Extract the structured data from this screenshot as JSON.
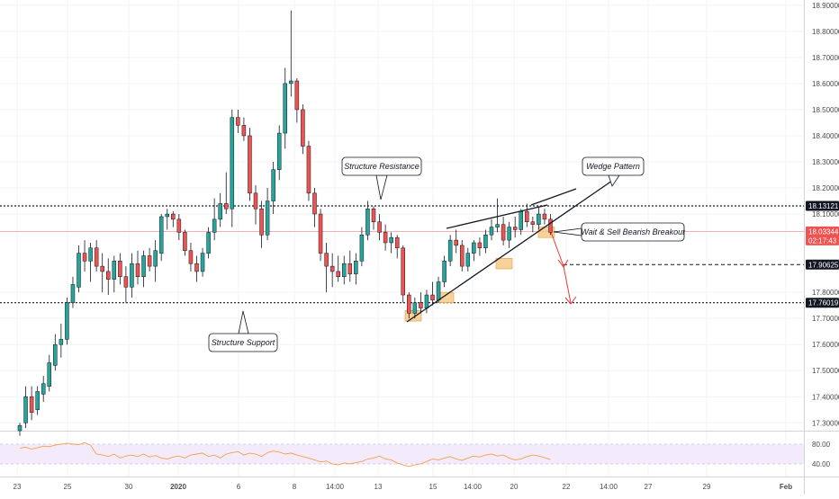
{
  "chart_data": {
    "type": "candlestick",
    "y_axis": {
      "ticks": [
        "18.90000",
        "18.80000",
        "18.70000",
        "18.60000",
        "18.50000",
        "18.40000",
        "18.30000",
        "18.20000",
        "18.10000",
        "17.80000",
        "17.70000",
        "17.60000",
        "17.50000",
        "17.40000",
        "17.30000"
      ],
      "ylim": [
        17.27,
        18.92
      ]
    },
    "x_axis": {
      "labels": [
        "23",
        "25",
        "30",
        "2020",
        "6",
        "8",
        "14:00",
        "13",
        "15",
        "14:00",
        "20",
        "22",
        "14:00",
        "27",
        "29",
        "Feb"
      ]
    },
    "candles": [
      {
        "o": 17.27,
        "h": 17.3,
        "l": 17.25,
        "c": 17.29
      },
      {
        "o": 17.3,
        "h": 17.44,
        "l": 17.28,
        "c": 17.4
      },
      {
        "o": 17.4,
        "h": 17.44,
        "l": 17.31,
        "c": 17.34
      },
      {
        "o": 17.35,
        "h": 17.44,
        "l": 17.33,
        "c": 17.42
      },
      {
        "o": 17.41,
        "h": 17.48,
        "l": 17.38,
        "c": 17.45
      },
      {
        "o": 17.44,
        "h": 17.56,
        "l": 17.42,
        "c": 17.53
      },
      {
        "o": 17.52,
        "h": 17.64,
        "l": 17.5,
        "c": 17.6
      },
      {
        "o": 17.6,
        "h": 17.68,
        "l": 17.55,
        "c": 17.62
      },
      {
        "o": 17.62,
        "h": 17.78,
        "l": 17.6,
        "c": 17.76
      },
      {
        "o": 17.76,
        "h": 17.86,
        "l": 17.74,
        "c": 17.83
      },
      {
        "o": 17.82,
        "h": 17.98,
        "l": 17.8,
        "c": 17.95
      },
      {
        "o": 17.95,
        "h": 18.0,
        "l": 17.88,
        "c": 17.92
      },
      {
        "o": 17.92,
        "h": 17.99,
        "l": 17.84,
        "c": 17.97
      },
      {
        "o": 17.97,
        "h": 18.0,
        "l": 17.88,
        "c": 17.9
      },
      {
        "o": 17.9,
        "h": 17.95,
        "l": 17.8,
        "c": 17.88
      },
      {
        "o": 17.88,
        "h": 17.93,
        "l": 17.79,
        "c": 17.85
      },
      {
        "o": 17.85,
        "h": 17.94,
        "l": 17.8,
        "c": 17.92
      },
      {
        "o": 17.92,
        "h": 17.95,
        "l": 17.83,
        "c": 17.86
      },
      {
        "o": 17.86,
        "h": 17.9,
        "l": 17.76,
        "c": 17.82
      },
      {
        "o": 17.82,
        "h": 17.95,
        "l": 17.78,
        "c": 17.91
      },
      {
        "o": 17.91,
        "h": 17.96,
        "l": 17.83,
        "c": 17.86
      },
      {
        "o": 17.86,
        "h": 17.96,
        "l": 17.82,
        "c": 17.94
      },
      {
        "o": 17.94,
        "h": 17.97,
        "l": 17.88,
        "c": 17.9
      },
      {
        "o": 17.9,
        "h": 18.0,
        "l": 17.84,
        "c": 17.96
      },
      {
        "o": 17.95,
        "h": 18.1,
        "l": 17.92,
        "c": 18.09
      },
      {
        "o": 18.09,
        "h": 18.12,
        "l": 18.04,
        "c": 18.1
      },
      {
        "o": 18.1,
        "h": 18.11,
        "l": 18.05,
        "c": 18.08
      },
      {
        "o": 18.08,
        "h": 18.1,
        "l": 18.0,
        "c": 18.03
      },
      {
        "o": 18.03,
        "h": 18.04,
        "l": 17.94,
        "c": 17.96
      },
      {
        "o": 17.96,
        "h": 17.99,
        "l": 17.88,
        "c": 17.91
      },
      {
        "o": 17.91,
        "h": 17.94,
        "l": 17.84,
        "c": 17.88
      },
      {
        "o": 17.88,
        "h": 17.97,
        "l": 17.86,
        "c": 17.95
      },
      {
        "o": 17.95,
        "h": 18.05,
        "l": 17.93,
        "c": 18.03
      },
      {
        "o": 18.03,
        "h": 18.16,
        "l": 18.0,
        "c": 18.08
      },
      {
        "o": 18.08,
        "h": 18.18,
        "l": 18.05,
        "c": 18.14
      },
      {
        "o": 18.14,
        "h": 18.26,
        "l": 18.1,
        "c": 18.12
      },
      {
        "o": 18.12,
        "h": 18.5,
        "l": 18.05,
        "c": 18.47
      },
      {
        "o": 18.47,
        "h": 18.5,
        "l": 18.41,
        "c": 18.44
      },
      {
        "o": 18.44,
        "h": 18.47,
        "l": 18.38,
        "c": 18.4
      },
      {
        "o": 18.4,
        "h": 18.43,
        "l": 18.15,
        "c": 18.18
      },
      {
        "o": 18.18,
        "h": 18.21,
        "l": 18.06,
        "c": 18.12
      },
      {
        "o": 18.12,
        "h": 18.15,
        "l": 17.97,
        "c": 18.02
      },
      {
        "o": 18.02,
        "h": 18.2,
        "l": 18.0,
        "c": 18.15
      },
      {
        "o": 18.15,
        "h": 18.3,
        "l": 18.1,
        "c": 18.27
      },
      {
        "o": 18.27,
        "h": 18.44,
        "l": 18.23,
        "c": 18.41
      },
      {
        "o": 18.41,
        "h": 18.66,
        "l": 18.35,
        "c": 18.6
      },
      {
        "o": 18.6,
        "h": 18.88,
        "l": 18.55,
        "c": 18.61
      },
      {
        "o": 18.61,
        "h": 18.62,
        "l": 18.45,
        "c": 18.5
      },
      {
        "o": 18.5,
        "h": 18.52,
        "l": 18.33,
        "c": 18.36
      },
      {
        "o": 18.36,
        "h": 18.38,
        "l": 18.15,
        "c": 18.18
      },
      {
        "o": 18.18,
        "h": 18.2,
        "l": 18.05,
        "c": 18.1
      },
      {
        "o": 18.1,
        "h": 18.12,
        "l": 17.92,
        "c": 17.95
      },
      {
        "o": 17.95,
        "h": 17.99,
        "l": 17.8,
        "c": 17.9
      },
      {
        "o": 17.9,
        "h": 17.95,
        "l": 17.82,
        "c": 17.88
      },
      {
        "o": 17.88,
        "h": 17.94,
        "l": 17.84,
        "c": 17.86
      },
      {
        "o": 17.86,
        "h": 17.94,
        "l": 17.83,
        "c": 17.91
      },
      {
        "o": 17.91,
        "h": 17.96,
        "l": 17.84,
        "c": 17.87
      },
      {
        "o": 17.87,
        "h": 17.95,
        "l": 17.83,
        "c": 17.92
      },
      {
        "o": 17.92,
        "h": 18.05,
        "l": 17.9,
        "c": 18.02
      },
      {
        "o": 18.02,
        "h": 18.15,
        "l": 18.0,
        "c": 18.12
      },
      {
        "o": 18.12,
        "h": 18.13,
        "l": 18.04,
        "c": 18.07
      },
      {
        "o": 18.07,
        "h": 18.1,
        "l": 18.0,
        "c": 18.03
      },
      {
        "o": 18.03,
        "h": 18.06,
        "l": 17.96,
        "c": 17.99
      },
      {
        "o": 17.99,
        "h": 18.03,
        "l": 17.95,
        "c": 18.01
      },
      {
        "o": 18.01,
        "h": 18.02,
        "l": 17.93,
        "c": 17.97
      },
      {
        "o": 17.97,
        "h": 17.98,
        "l": 17.76,
        "c": 17.79
      },
      {
        "o": 17.79,
        "h": 17.8,
        "l": 17.7,
        "c": 17.72
      },
      {
        "o": 17.72,
        "h": 17.78,
        "l": 17.7,
        "c": 17.76
      },
      {
        "o": 17.76,
        "h": 17.8,
        "l": 17.72,
        "c": 17.74
      },
      {
        "o": 17.74,
        "h": 17.81,
        "l": 17.72,
        "c": 17.79
      },
      {
        "o": 17.79,
        "h": 17.84,
        "l": 17.75,
        "c": 17.77
      },
      {
        "o": 17.77,
        "h": 17.86,
        "l": 17.76,
        "c": 17.84
      },
      {
        "o": 17.84,
        "h": 17.94,
        "l": 17.82,
        "c": 17.92
      },
      {
        "o": 17.92,
        "h": 18.02,
        "l": 17.9,
        "c": 18.0
      },
      {
        "o": 18.0,
        "h": 18.04,
        "l": 17.95,
        "c": 17.98
      },
      {
        "o": 17.98,
        "h": 18.0,
        "l": 17.88,
        "c": 17.9
      },
      {
        "o": 17.9,
        "h": 17.97,
        "l": 17.88,
        "c": 17.95
      },
      {
        "o": 17.95,
        "h": 18.0,
        "l": 17.92,
        "c": 17.99
      },
      {
        "o": 17.99,
        "h": 18.01,
        "l": 17.94,
        "c": 17.97
      },
      {
        "o": 17.97,
        "h": 18.04,
        "l": 17.95,
        "c": 18.02
      },
      {
        "o": 18.02,
        "h": 18.08,
        "l": 18.0,
        "c": 18.05
      },
      {
        "o": 18.05,
        "h": 18.16,
        "l": 18.03,
        "c": 18.06
      },
      {
        "o": 18.06,
        "h": 18.09,
        "l": 17.98,
        "c": 18.0
      },
      {
        "o": 18.0,
        "h": 18.07,
        "l": 17.97,
        "c": 18.05
      },
      {
        "o": 18.05,
        "h": 18.09,
        "l": 18.01,
        "c": 18.04
      },
      {
        "o": 18.04,
        "h": 18.12,
        "l": 18.02,
        "c": 18.11
      },
      {
        "o": 18.11,
        "h": 18.14,
        "l": 18.05,
        "c": 18.07
      },
      {
        "o": 18.07,
        "h": 18.09,
        "l": 18.03,
        "c": 18.06
      },
      {
        "o": 18.06,
        "h": 18.13,
        "l": 18.04,
        "c": 18.1
      },
      {
        "o": 18.1,
        "h": 18.12,
        "l": 18.06,
        "c": 18.08
      },
      {
        "o": 18.08,
        "h": 18.1,
        "l": 18.02,
        "c": 18.03
      }
    ],
    "support_level": 17.76019,
    "resistance_level": 18.13121,
    "target_level": 17.90625,
    "current_price": 18.03344,
    "price_labels": [
      {
        "text": "18.13121",
        "style": "dark"
      },
      {
        "text": "18.03344",
        "style": "red"
      },
      {
        "text": "02:17:43",
        "style": "red"
      },
      {
        "text": "17.90625",
        "style": "dark"
      },
      {
        "text": "17.76019",
        "style": "dark"
      }
    ],
    "annotations": [
      {
        "text": "Structure Resistance"
      },
      {
        "text": "Structure Support"
      },
      {
        "text": "Wedge Pattern"
      },
      {
        "text": "Wait & Sell Bearish Breakout"
      }
    ],
    "rsi": {
      "ticks": [
        "80.00",
        "40.00"
      ],
      "values": [
        72,
        74,
        70,
        73,
        76,
        75,
        78,
        80,
        82,
        80,
        79,
        83,
        78,
        60,
        58,
        55,
        60,
        52,
        56,
        58,
        55,
        60,
        54,
        57,
        52,
        50,
        54,
        56,
        52,
        58,
        60,
        62,
        55,
        58,
        52,
        60,
        63,
        65,
        58,
        62,
        60,
        55,
        63,
        66,
        64,
        60,
        62,
        58,
        55,
        52,
        48,
        44,
        46,
        40,
        38,
        42,
        40,
        43,
        45,
        50,
        52,
        56,
        50,
        48,
        42,
        38,
        35,
        38,
        40,
        45,
        50,
        48,
        52,
        55,
        50,
        47,
        52,
        56,
        54,
        58,
        60,
        56,
        58,
        52,
        48,
        50,
        55,
        58,
        56,
        53,
        49
      ]
    },
    "colors": {
      "bull": "#26a69a",
      "bear": "#ef5350",
      "rsi_line": "#f5a04a",
      "rsi_band": "#f3ebfb",
      "zone": "#f5c27a",
      "arrow": "#e53935"
    }
  }
}
